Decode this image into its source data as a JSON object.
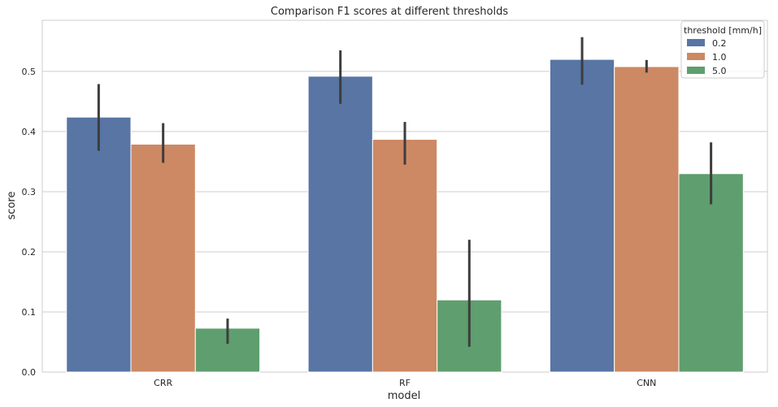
{
  "chart_data": {
    "type": "bar",
    "title": "Comparison F1 scores at different thresholds",
    "xlabel": "model",
    "ylabel": "score",
    "categories": [
      "CRR",
      "RF",
      "CNN"
    ],
    "ylim": [
      0,
      0.585
    ],
    "yticks": [
      0.0,
      0.1,
      0.2,
      0.3,
      0.4,
      0.5
    ],
    "ytick_labels": [
      "0.0",
      "0.1",
      "0.2",
      "0.3",
      "0.4",
      "0.5"
    ],
    "grid": "horizontal",
    "legend": {
      "title": "threshold [mm/h]",
      "placement": "top-right"
    },
    "series": [
      {
        "name": "0.2",
        "color": "#5875a4",
        "values": [
          0.424,
          0.492,
          0.52
        ],
        "err_low": [
          0.368,
          0.446,
          0.478
        ],
        "err_high": [
          0.479,
          0.535,
          0.557
        ]
      },
      {
        "name": "1.0",
        "color": "#cc8963",
        "values": [
          0.379,
          0.387,
          0.508
        ],
        "err_low": [
          0.348,
          0.345,
          0.498
        ],
        "err_high": [
          0.414,
          0.416,
          0.519
        ]
      },
      {
        "name": "5.0",
        "color": "#5f9e6e",
        "values": [
          0.073,
          0.12,
          0.33
        ],
        "err_low": [
          0.047,
          0.042,
          0.279
        ],
        "err_high": [
          0.089,
          0.22,
          0.382
        ]
      }
    ]
  }
}
